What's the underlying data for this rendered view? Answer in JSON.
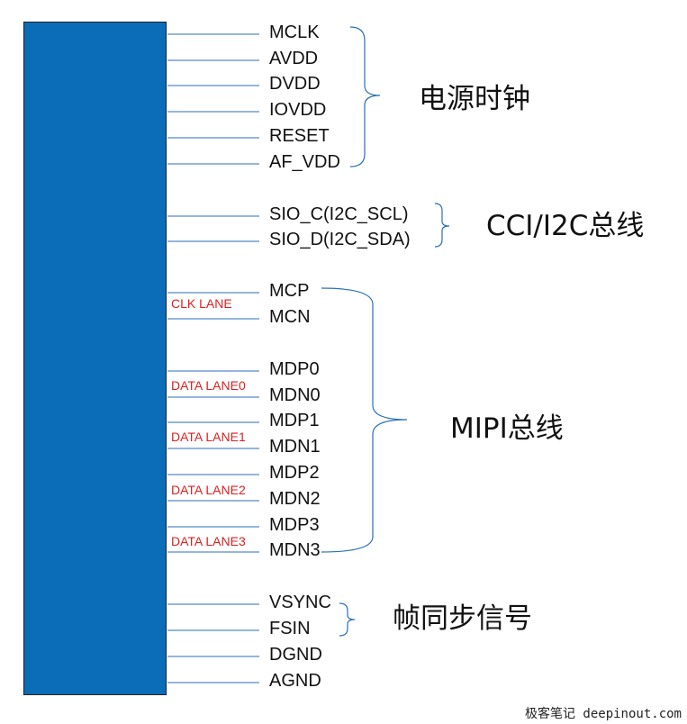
{
  "colors": {
    "chip": "#0b6cb8",
    "wire": "#2a6fb8",
    "lane_label": "#e02020",
    "bracket": "#2a6fb8"
  },
  "pins": [
    {
      "label": "MCLK"
    },
    {
      "label": "AVDD"
    },
    {
      "label": "DVDD"
    },
    {
      "label": "IOVDD"
    },
    {
      "label": "RESET"
    },
    {
      "label": "AF_VDD"
    },
    {
      "label": "SIO_C(I2C_SCL)"
    },
    {
      "label": "SIO_D(I2C_SDA)"
    },
    {
      "label": "MCP"
    },
    {
      "label": "MCN"
    },
    {
      "label": "MDP0"
    },
    {
      "label": "MDN0"
    },
    {
      "label": "MDP1"
    },
    {
      "label": "MDN1"
    },
    {
      "label": "MDP2"
    },
    {
      "label": "MDN2"
    },
    {
      "label": "MDP3"
    },
    {
      "label": "MDN3"
    },
    {
      "label": "VSYNC"
    },
    {
      "label": "FSIN"
    },
    {
      "label": "DGND"
    },
    {
      "label": "AGND"
    }
  ],
  "lanes": [
    {
      "label": "CLK LANE"
    },
    {
      "label": "DATA LANE0"
    },
    {
      "label": "DATA LANE1"
    },
    {
      "label": "DATA LANE2"
    },
    {
      "label": "DATA LANE3"
    }
  ],
  "groups": {
    "power_clock": "电源时钟",
    "cci": "CCI/I2C总线",
    "mipi": "MIPI总线",
    "frame_sync": "帧同步信号"
  },
  "watermark": "极客笔记 deepinout.com"
}
